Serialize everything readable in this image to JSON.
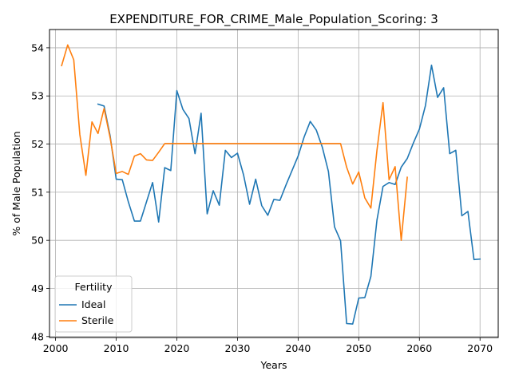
{
  "chart_data": {
    "type": "line",
    "title": "EXPENDITURE_FOR_CRIME_Male_Population_Scoring: 3",
    "xlabel": "Years",
    "ylabel": "% of Male Population",
    "xlim": [
      1999,
      2073
    ],
    "ylim": [
      47.98,
      54.38
    ],
    "xticks": [
      2000,
      2010,
      2020,
      2030,
      2040,
      2050,
      2060,
      2070
    ],
    "yticks": [
      48,
      49,
      50,
      51,
      52,
      53,
      54
    ],
    "grid": true,
    "legend": {
      "title": "Fertility",
      "placement": "lower-left"
    },
    "series": [
      {
        "name": "Ideal",
        "color": "#1f77b4",
        "x": [
          2007,
          2008,
          2009,
          2010,
          2011,
          2012,
          2013,
          2014,
          2015,
          2016,
          2017,
          2018,
          2019,
          2020,
          2021,
          2022,
          2023,
          2024,
          2025,
          2026,
          2027,
          2028,
          2029,
          2030,
          2031,
          2032,
          2033,
          2034,
          2035,
          2036,
          2037,
          2038,
          2039,
          2040,
          2041,
          2042,
          2043,
          2044,
          2045,
          2046,
          2047,
          2048,
          2049,
          2050,
          2051,
          2052,
          2053,
          2054,
          2055,
          2056,
          2057,
          2058,
          2059,
          2060,
          2061,
          2062,
          2063,
          2064,
          2065,
          2066,
          2067,
          2068,
          2069,
          2070
        ],
        "y": [
          52.83,
          52.79,
          52.17,
          51.27,
          51.26,
          50.8,
          50.4,
          50.4,
          50.8,
          51.2,
          50.38,
          51.51,
          51.45,
          53.11,
          52.72,
          52.53,
          51.8,
          52.64,
          50.55,
          51.03,
          50.73,
          51.87,
          51.72,
          51.81,
          51.36,
          50.75,
          51.27,
          50.72,
          50.52,
          50.85,
          50.83,
          51.15,
          51.45,
          51.75,
          52.15,
          52.47,
          52.29,
          51.93,
          51.43,
          50.28,
          49.99,
          48.27,
          48.26,
          48.8,
          48.81,
          49.25,
          50.42,
          51.12,
          51.2,
          51.16,
          51.52,
          51.7,
          52.02,
          52.31,
          52.8,
          53.64,
          52.97,
          53.17,
          51.8,
          51.87,
          50.51,
          50.6,
          49.6,
          49.61
        ]
      },
      {
        "name": "Sterile",
        "color": "#ff7f0e",
        "x": [
          2001,
          2002,
          2003,
          2004,
          2005,
          2006,
          2007,
          2008,
          2009,
          2010,
          2011,
          2012,
          2013,
          2014,
          2015,
          2016,
          2017,
          2018,
          2019,
          2020,
          2021,
          2022,
          2023,
          2024,
          2025,
          2026,
          2027,
          2028,
          2029,
          2030,
          2031,
          2032,
          2033,
          2034,
          2035,
          2036,
          2037,
          2038,
          2039,
          2040,
          2041,
          2042,
          2043,
          2044,
          2045,
          2046,
          2047,
          2048,
          2049,
          2050,
          2051,
          2052,
          2053,
          2054,
          2055,
          2056,
          2057,
          2058
        ],
        "y": [
          53.63,
          54.06,
          53.75,
          52.2,
          51.35,
          52.46,
          52.22,
          52.74,
          52.13,
          51.39,
          51.43,
          51.37,
          51.75,
          51.8,
          51.67,
          51.66,
          51.83,
          52.01,
          52.01,
          52.01,
          52.01,
          52.01,
          52.01,
          52.01,
          52.01,
          52.01,
          52.01,
          52.01,
          52.01,
          52.01,
          52.01,
          52.01,
          52.01,
          52.01,
          52.01,
          52.01,
          52.01,
          52.01,
          52.01,
          52.01,
          52.01,
          52.01,
          52.01,
          52.01,
          52.01,
          52.01,
          52.01,
          51.52,
          51.17,
          51.42,
          50.88,
          50.67,
          51.87,
          52.86,
          51.26,
          51.53,
          50.0,
          51.31
        ]
      }
    ]
  }
}
